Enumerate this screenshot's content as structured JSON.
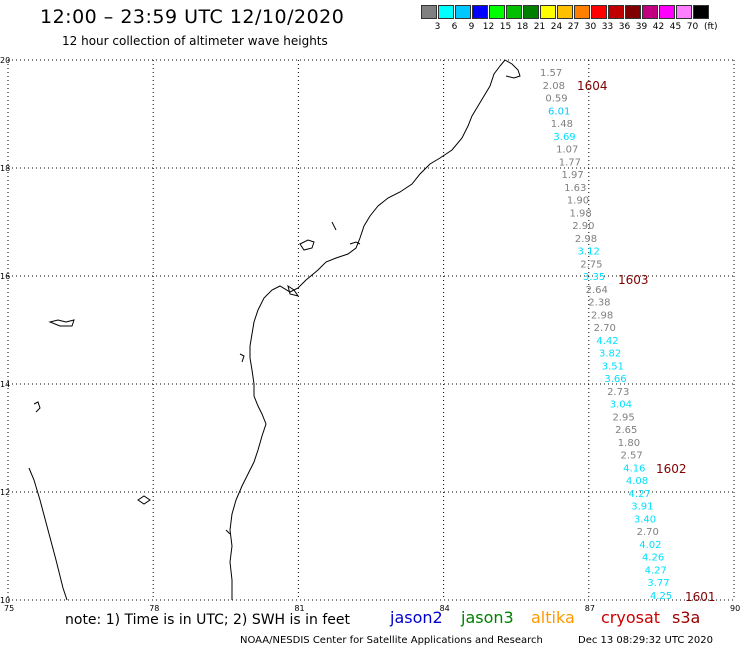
{
  "header": {
    "title": "12:00 – 23:59 UTC 12/10/2020",
    "subtitle": "12 hour collection of altimeter wave heights"
  },
  "color_scale": {
    "colors": [
      "#808080",
      "#00ffff",
      "#00c8ff",
      "#0000ff",
      "#00ff00",
      "#00c000",
      "#008000",
      "#ffff00",
      "#ffc000",
      "#ff8000",
      "#ff0000",
      "#c00000",
      "#800000",
      "#c00080",
      "#ff00ff",
      "#ff80ff",
      "#000000"
    ],
    "labels": [
      "3",
      "6",
      "9",
      "12",
      "15",
      "18",
      "21",
      "24",
      "27",
      "30",
      "33",
      "36",
      "39",
      "42",
      "45",
      "70"
    ],
    "unit": "(ft)"
  },
  "map": {
    "lat_range": [
      10,
      20
    ],
    "lon_range": [
      75,
      90
    ],
    "lat_ticks": [
      "20",
      "18",
      "16",
      "14",
      "12",
      "10"
    ],
    "lon_ticks": [
      "75",
      "78",
      "81",
      "84",
      "87",
      "90"
    ],
    "grid": true
  },
  "track_labels": [
    {
      "id": "1604",
      "color": "#800000"
    },
    {
      "id": "1603",
      "color": "#800000"
    },
    {
      "id": "1602",
      "color": "#800000"
    },
    {
      "id": "1601",
      "color": "#800000"
    }
  ],
  "wave_heights": [
    {
      "value": "1.57",
      "color": "#808080"
    },
    {
      "value": "2.08",
      "color": "#808080"
    },
    {
      "value": "0.59",
      "color": "#808080"
    },
    {
      "value": "6.01",
      "color": "#00c8ff"
    },
    {
      "value": "1.48",
      "color": "#808080"
    },
    {
      "value": "3.69",
      "color": "#00e0ff"
    },
    {
      "value": "1.07",
      "color": "#808080"
    },
    {
      "value": "1.77",
      "color": "#808080"
    },
    {
      "value": "1.97",
      "color": "#808080"
    },
    {
      "value": "1.63",
      "color": "#808080"
    },
    {
      "value": "1.90",
      "color": "#808080"
    },
    {
      "value": "1.98",
      "color": "#808080"
    },
    {
      "value": "2.90",
      "color": "#808080"
    },
    {
      "value": "2.98",
      "color": "#808080"
    },
    {
      "value": "3.12",
      "color": "#00e0ff"
    },
    {
      "value": "2.75",
      "color": "#808080"
    },
    {
      "value": "3.35",
      "color": "#00e0ff"
    },
    {
      "value": "2.64",
      "color": "#808080"
    },
    {
      "value": "2.38",
      "color": "#808080"
    },
    {
      "value": "2.98",
      "color": "#808080"
    },
    {
      "value": "2.70",
      "color": "#808080"
    },
    {
      "value": "4.42",
      "color": "#00e0ff"
    },
    {
      "value": "3.82",
      "color": "#00e0ff"
    },
    {
      "value": "3.51",
      "color": "#00e0ff"
    },
    {
      "value": "3.66",
      "color": "#00e0ff"
    },
    {
      "value": "2.73",
      "color": "#808080"
    },
    {
      "value": "3.04",
      "color": "#00e0ff"
    },
    {
      "value": "2.95",
      "color": "#808080"
    },
    {
      "value": "2.65",
      "color": "#808080"
    },
    {
      "value": "1.80",
      "color": "#808080"
    },
    {
      "value": "2.57",
      "color": "#808080"
    },
    {
      "value": "4.16",
      "color": "#00e0ff"
    },
    {
      "value": "4.08",
      "color": "#00e0ff"
    },
    {
      "value": "4.27",
      "color": "#00e0ff"
    },
    {
      "value": "3.91",
      "color": "#00e0ff"
    },
    {
      "value": "3.40",
      "color": "#00e0ff"
    },
    {
      "value": "2.70",
      "color": "#808080"
    },
    {
      "value": "4.02",
      "color": "#00e0ff"
    },
    {
      "value": "4.26",
      "color": "#00e0ff"
    },
    {
      "value": "4.27",
      "color": "#00e0ff"
    },
    {
      "value": "3.77",
      "color": "#00e0ff"
    },
    {
      "value": "4.25",
      "color": "#00e0ff"
    }
  ],
  "legend": {
    "note": "note: 1) Time is in UTC; 2) SWH is in feet",
    "satellites": [
      {
        "name": "jason2",
        "color": "#0000cc"
      },
      {
        "name": "jason3",
        "color": "#008000"
      },
      {
        "name": "altika",
        "color": "#ff9900"
      },
      {
        "name": "cryosat",
        "color": "#cc0000"
      },
      {
        "name": "s3a",
        "color": "#990000"
      }
    ]
  },
  "footer": {
    "credit": "NOAA/NESDIS Center for Satellite Applications and Research",
    "timestamp": "Dec 13 08:29:32 UTC 2020"
  }
}
